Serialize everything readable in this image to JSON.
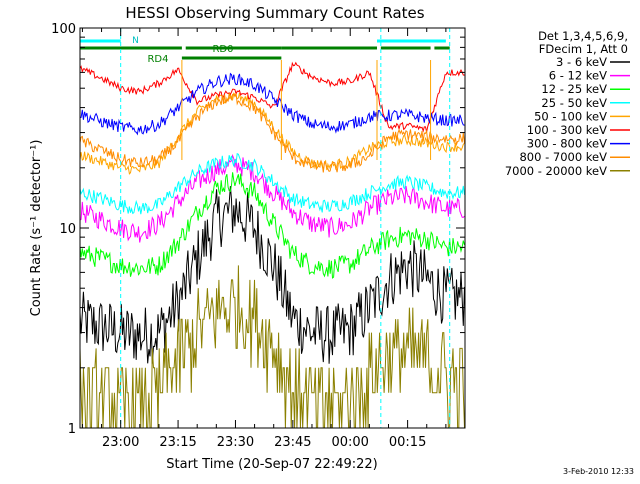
{
  "chart_data": {
    "type": "line",
    "title": "HESSI Observing Summary Count Rates",
    "xlabel": "Start Time (20-Sep-07 22:49:22)",
    "ylabel": "Count Rate (s⁻¹ detector⁻¹)",
    "y_scale": "log",
    "ylim": [
      1,
      100
    ],
    "xlim": [
      "22:49:22",
      "00:30:00"
    ],
    "x_ticks": [
      "23:00",
      "23:15",
      "23:30",
      "23:45",
      "00:00",
      "00:15"
    ],
    "y_ticks": [
      "1",
      "10",
      "100"
    ],
    "grid": false,
    "legend_position": "right",
    "legend_header": [
      "Det 1,3,4,5,6,9,",
      "FDecim 1, Att 0"
    ],
    "date_stamp": "3-Feb-2010 12:33",
    "annotations": {
      "night_label": "N",
      "rd0_label": "RD0",
      "rd4_label": "RD4",
      "night_bars": [
        [
          "22:49:22",
          "23:00"
        ],
        [
          "00:07",
          "00:25"
        ]
      ],
      "rd0_bars": [
        [
          "22:49:22",
          "23:16"
        ],
        [
          "23:17",
          "23:42"
        ],
        [
          "23:42",
          "00:07"
        ],
        [
          "00:08",
          "00:21"
        ],
        [
          "00:22",
          "00:26"
        ]
      ],
      "saa_markers": [
        "23:00",
        "00:08",
        "00:26"
      ],
      "attenuator_transitions": [
        "23:16",
        "23:42",
        "00:07",
        "00:21"
      ]
    },
    "series": [
      {
        "name": "3 - 6 keV",
        "color": "#000000",
        "x": [
          "22:50",
          "22:55",
          "23:00",
          "23:05",
          "23:10",
          "23:15",
          "23:20",
          "23:25",
          "23:30",
          "23:35",
          "23:40",
          "23:45",
          "23:50",
          "23:55",
          "00:00",
          "00:05",
          "00:10",
          "00:15",
          "00:20",
          "00:25"
        ],
        "y": [
          3.4,
          3.2,
          3.0,
          2.9,
          3.0,
          4.2,
          7.0,
          11.0,
          12.5,
          10.0,
          6.5,
          3.5,
          3.0,
          2.9,
          3.1,
          4.0,
          5.5,
          6.5,
          5.5,
          4.5
        ]
      },
      {
        "name": "6 - 12 keV",
        "color": "#ff00ff",
        "x": [
          "22:50",
          "22:55",
          "23:00",
          "23:05",
          "23:10",
          "23:15",
          "23:20",
          "23:25",
          "23:30",
          "23:35",
          "23:40",
          "23:45",
          "23:50",
          "23:55",
          "00:00",
          "00:05",
          "00:10",
          "00:15",
          "00:20",
          "00:25"
        ],
        "y": [
          12.0,
          11.0,
          10.0,
          9.5,
          10.5,
          13.5,
          17.0,
          19.5,
          21.0,
          19.0,
          15.0,
          12.0,
          10.5,
          10.0,
          10.5,
          12.5,
          14.0,
          14.5,
          13.5,
          12.5
        ]
      },
      {
        "name": "12 - 25 keV",
        "color": "#00ff00",
        "x": [
          "22:50",
          "22:55",
          "23:00",
          "23:05",
          "23:10",
          "23:15",
          "23:20",
          "23:25",
          "23:30",
          "23:35",
          "23:40",
          "23:45",
          "23:50",
          "23:55",
          "00:00",
          "00:05",
          "00:10",
          "00:15",
          "00:20",
          "00:25"
        ],
        "y": [
          7.5,
          7.0,
          6.5,
          6.3,
          6.5,
          8.5,
          12.0,
          16.0,
          17.5,
          15.0,
          10.5,
          7.5,
          6.5,
          6.3,
          6.6,
          7.8,
          8.8,
          9.2,
          8.8,
          8.0
        ]
      },
      {
        "name": "25 - 50 keV",
        "color": "#00ffff",
        "x": [
          "22:50",
          "22:55",
          "23:00",
          "23:05",
          "23:10",
          "23:15",
          "23:20",
          "23:25",
          "23:30",
          "23:35",
          "23:40",
          "23:45",
          "23:50",
          "23:55",
          "00:00",
          "00:05",
          "00:10",
          "00:15",
          "00:20",
          "00:25"
        ],
        "y": [
          15.0,
          14.0,
          13.0,
          12.5,
          13.0,
          16.0,
          19.0,
          21.0,
          22.0,
          20.5,
          17.0,
          14.0,
          13.0,
          12.8,
          13.5,
          15.0,
          16.5,
          17.0,
          16.0,
          15.0
        ]
      },
      {
        "name": "50 - 100 keV",
        "color": "#ffa500",
        "x": [
          "22:50",
          "22:55",
          "23:00",
          "23:05",
          "23:10",
          "23:15",
          "23:20",
          "23:25",
          "23:30",
          "23:35",
          "23:40",
          "23:45",
          "23:50",
          "23:55",
          "00:00",
          "00:05",
          "00:10",
          "00:15",
          "00:20",
          "00:25"
        ],
        "y": [
          23.0,
          21.5,
          20.0,
          19.5,
          21.0,
          29.0,
          38.0,
          44.0,
          46.0,
          42.0,
          32.0,
          24.0,
          21.0,
          20.5,
          21.5,
          25.0,
          27.0,
          27.5,
          26.5,
          25.5
        ]
      },
      {
        "name": "100 - 300 keV",
        "color": "#ff0000",
        "x": [
          "22:50",
          "22:55",
          "23:00",
          "23:05",
          "23:10",
          "23:15",
          "23:20",
          "23:25",
          "23:30",
          "23:35",
          "23:40",
          "23:45",
          "23:50",
          "23:55",
          "00:00",
          "00:05",
          "00:10",
          "00:15",
          "00:20",
          "00:25"
        ],
        "y": [
          62.0,
          56.0,
          50.0,
          48.0,
          53.0,
          62.0,
          43.0,
          46.0,
          48.0,
          45.0,
          40.0,
          66.0,
          57.0,
          53.0,
          54.0,
          60.0,
          32.0,
          32.5,
          31.0,
          60.0
        ]
      },
      {
        "name": "300 - 800 keV",
        "color": "#0000ff",
        "x": [
          "22:50",
          "22:55",
          "23:00",
          "23:05",
          "23:10",
          "23:15",
          "23:20",
          "23:25",
          "23:30",
          "23:35",
          "23:40",
          "23:45",
          "23:50",
          "23:55",
          "00:00",
          "00:05",
          "00:10",
          "00:15",
          "00:20",
          "00:25"
        ],
        "y": [
          37.0,
          34.0,
          32.0,
          31.0,
          33.0,
          40.0,
          48.0,
          54.0,
          56.0,
          52.0,
          44.0,
          37.0,
          33.0,
          32.0,
          33.0,
          36.0,
          36.5,
          36.8,
          35.5,
          34.5
        ]
      },
      {
        "name": "800 - 7000 keV",
        "color": "#ff8c00",
        "x": [
          "22:50",
          "22:55",
          "23:00",
          "23:05",
          "23:10",
          "23:15",
          "23:20",
          "23:25",
          "23:30",
          "23:35",
          "23:40",
          "23:45",
          "23:50",
          "23:55",
          "00:00",
          "00:05",
          "00:10",
          "00:15",
          "00:20",
          "00:25"
        ],
        "y": [
          27.0,
          24.5,
          22.0,
          21.0,
          22.0,
          27.0,
          36.0,
          43.0,
          45.0,
          40.0,
          30.0,
          22.5,
          20.5,
          20.0,
          20.5,
          23.0,
          28.5,
          29.5,
          28.5,
          28.0
        ]
      },
      {
        "name": "7000 - 20000 keV",
        "color": "#8b8000",
        "x": [
          "22:50",
          "22:55",
          "23:00",
          "23:05",
          "23:10",
          "23:15",
          "23:20",
          "23:25",
          "23:30",
          "23:35",
          "23:40",
          "23:45",
          "23:50",
          "23:55",
          "00:00",
          "00:05",
          "00:10",
          "00:15",
          "00:20",
          "00:25"
        ],
        "y": [
          1.5,
          1.4,
          1.3,
          1.3,
          1.5,
          2.2,
          3.0,
          3.8,
          4.0,
          3.5,
          2.5,
          1.6,
          1.3,
          1.3,
          1.4,
          1.8,
          2.3,
          2.5,
          2.2,
          1.8
        ]
      }
    ]
  }
}
